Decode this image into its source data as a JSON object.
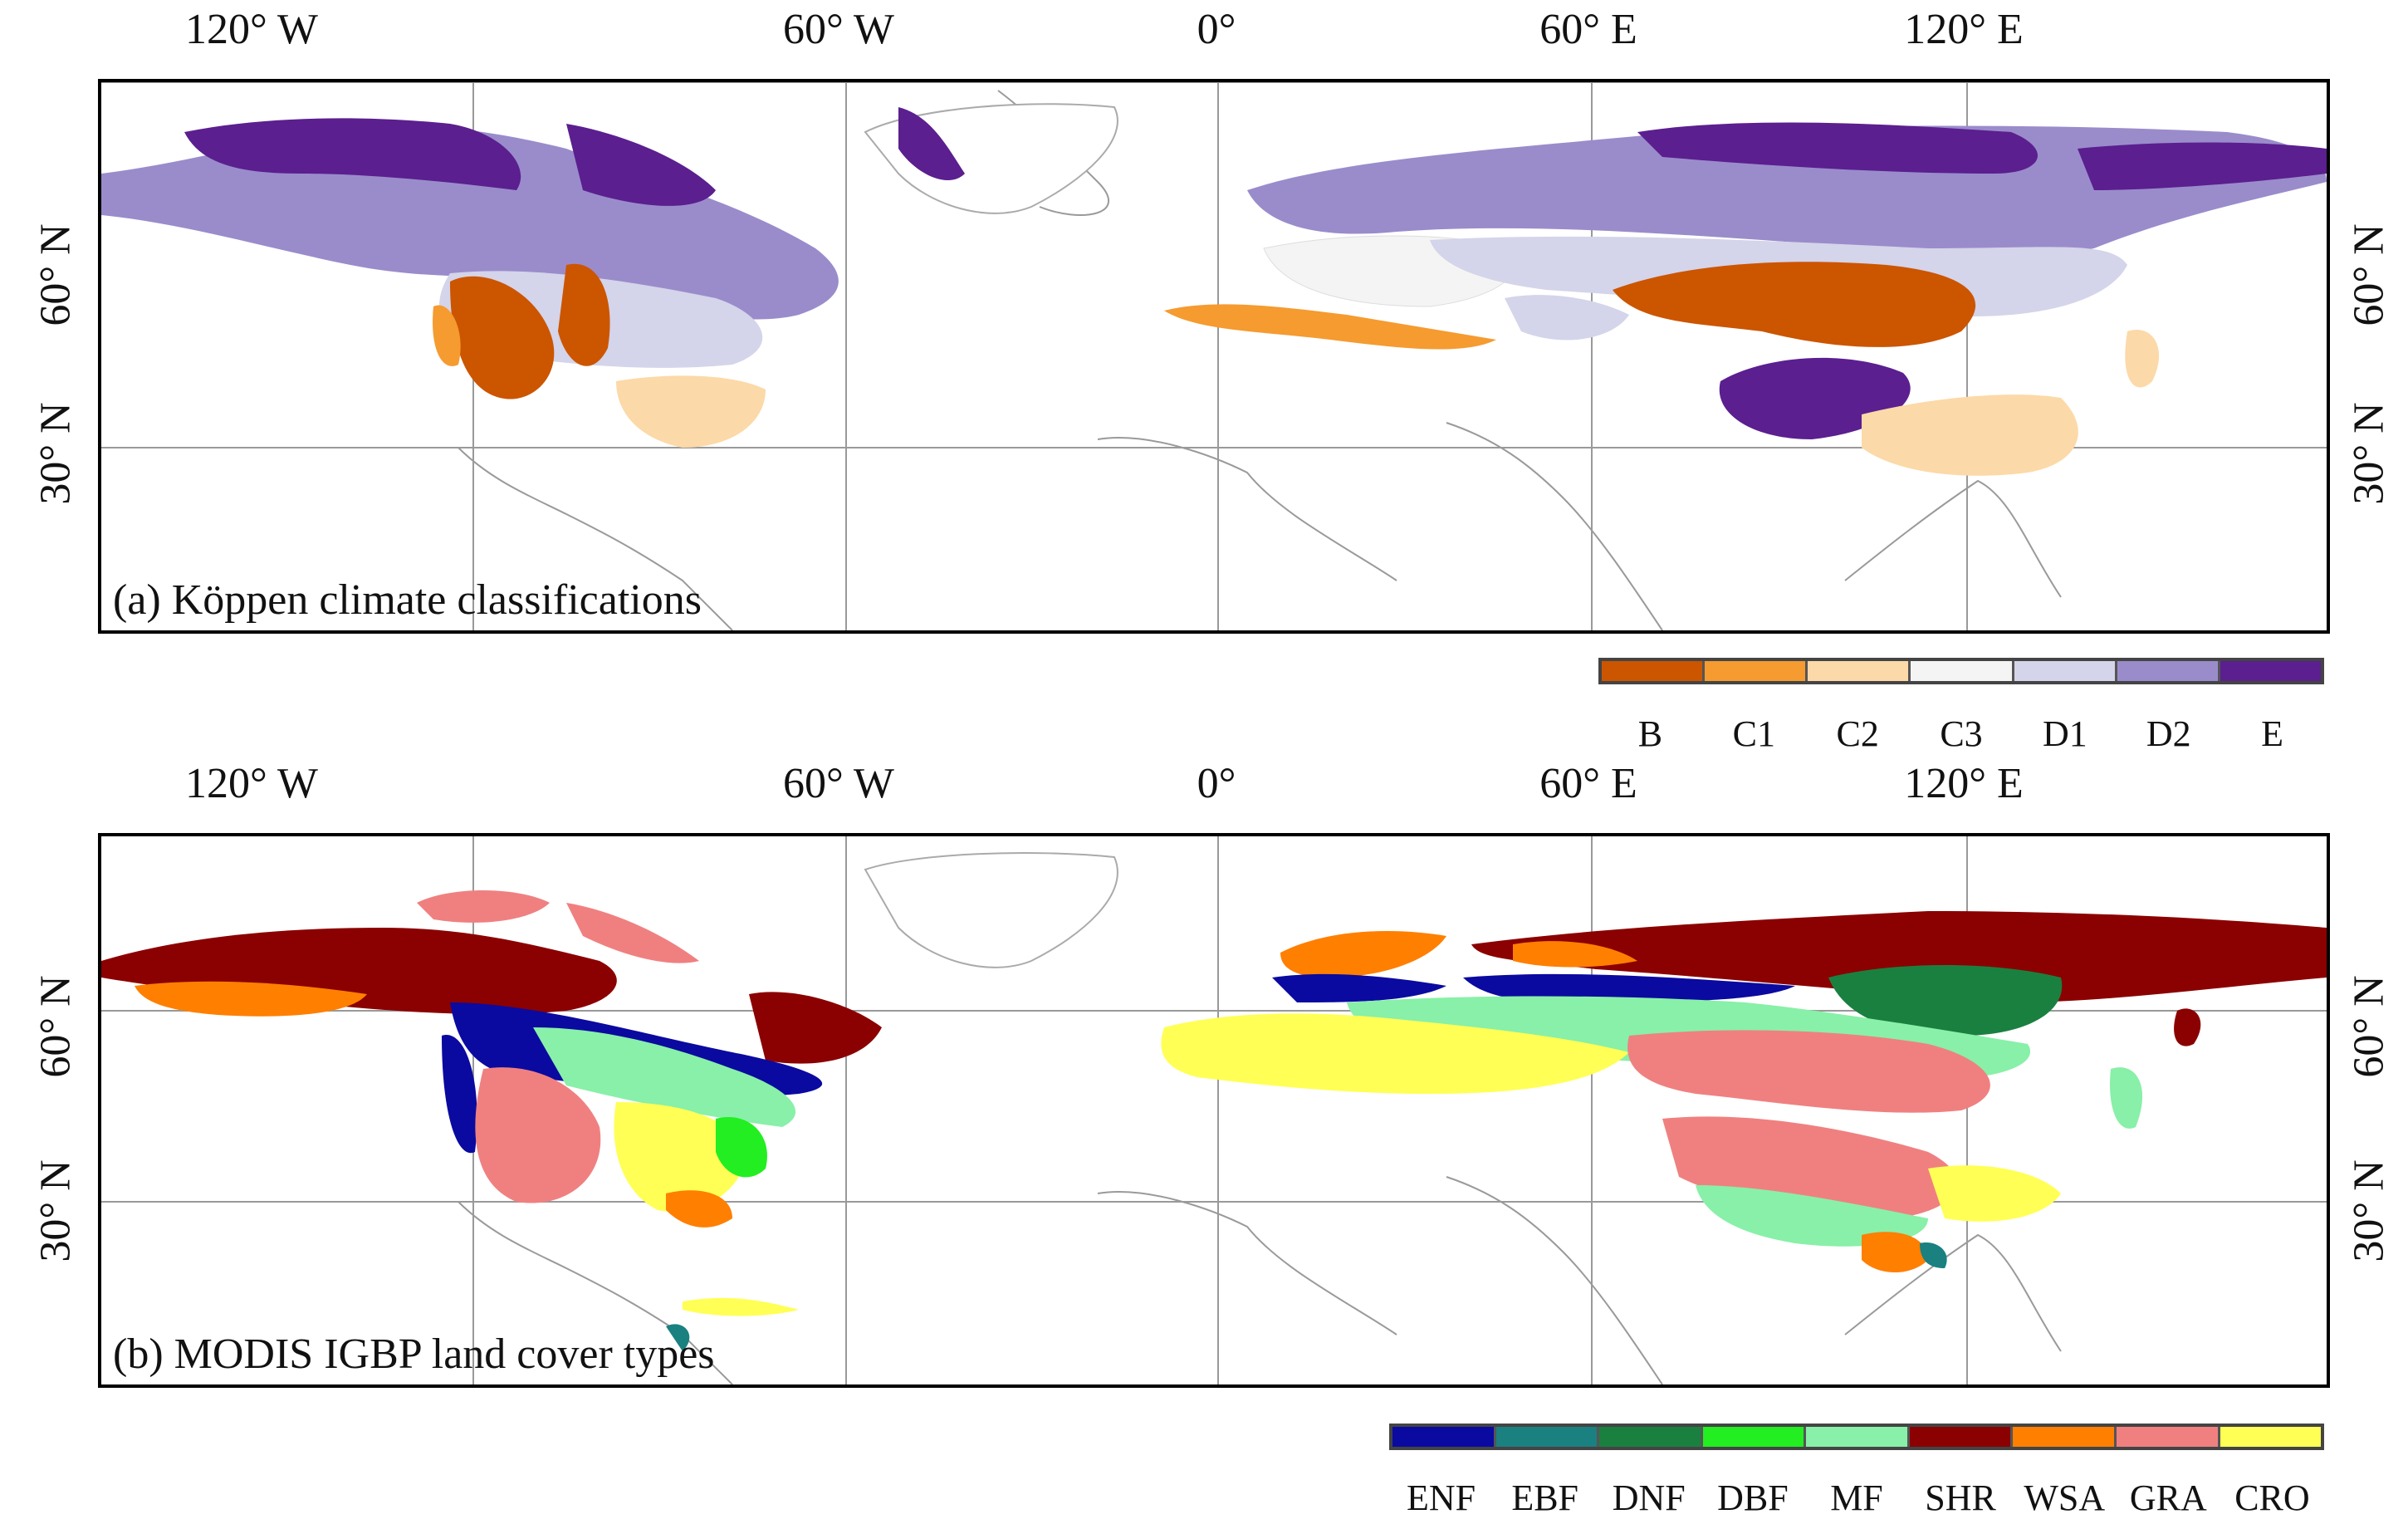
{
  "panel_a": {
    "title": "(a) Köppen climate classifications",
    "lon_labels": [
      "120° W",
      "60° W",
      "0°",
      "60° E",
      "120° E"
    ],
    "lat_labels": [
      "60° N",
      "30° N"
    ],
    "legend": {
      "labels": [
        "B",
        "C1",
        "C2",
        "C3",
        "D1",
        "D2",
        "E"
      ],
      "colors": [
        "#cc5500",
        "#f59b30",
        "#fcd9a8",
        "#f4f4f4",
        "#d4d4ea",
        "#9a8ccb",
        "#5b1f8f"
      ]
    }
  },
  "panel_b": {
    "title": "(b) MODIS IGBP land cover types",
    "lon_labels": [
      "120° W",
      "60° W",
      "0°",
      "60° E",
      "120° E"
    ],
    "lat_labels": [
      "60° N",
      "30° N"
    ],
    "legend": {
      "labels": [
        "ENF",
        "EBF",
        "DNF",
        "DBF",
        "MF",
        "SHR",
        "WSA",
        "GRA",
        "CRO"
      ],
      "colors": [
        "#0a0aa0",
        "#1a8080",
        "#1a8040",
        "#22ee22",
        "#88f0a8",
        "#8b0000",
        "#ff7f00",
        "#f08080",
        "#ffff55"
      ]
    }
  }
}
